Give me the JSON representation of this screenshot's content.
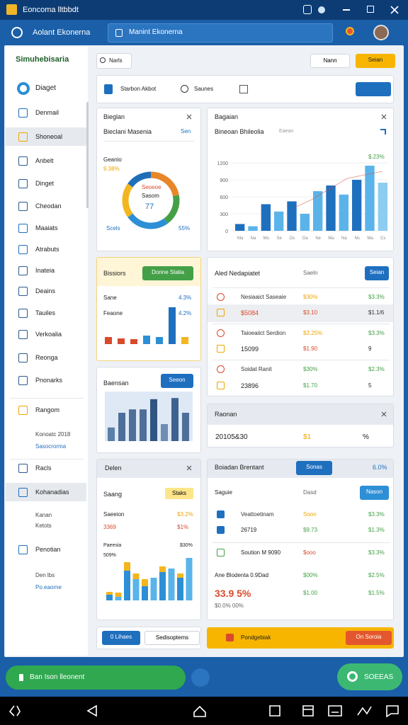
{
  "window": {
    "title": "Eoncoma lltbbdt"
  },
  "header": {
    "title": "Aolant Ekonerna",
    "search": "Manint Ekonerna"
  },
  "sidebar": {
    "title": "Simuhebisaria",
    "items": [
      "Diaget",
      "Denmail",
      "Shoneoal",
      "Anbelt",
      "Dinget",
      "Cheodan",
      "Maaiats",
      "Atrabuts",
      "Inateia",
      "Deains",
      "Tauiles",
      "Verkoalia",
      "Reonga",
      "Pnonarks",
      "Rangom"
    ],
    "group_1": [
      "Konoatc 2018",
      "Sasocrorma"
    ],
    "items_2": [
      "Racls",
      "Kohanadias"
    ],
    "group_2": [
      "Kanan",
      "Ketots"
    ],
    "items_3": [
      "Penotian"
    ],
    "group_3": [
      "Den lbs",
      "Po.eaorne"
    ]
  },
  "toolbar": {
    "search": "Narls",
    "button_1": "Nann",
    "button_2": "Seian",
    "filter_1": "Starbon Akbot",
    "filter_2": "Saunes"
  },
  "donut_card": {
    "title": "Bieglan",
    "subtitle": "Bieclani Masenia",
    "tag": "Sen",
    "label": "Geanio",
    "percent": "9.38%",
    "center": [
      "Seoeoe",
      "Sasom",
      "77"
    ],
    "footer_left": "Scels",
    "footer_right": "55%",
    "values": [
      22,
      18,
      25,
      20,
      15
    ],
    "colors": [
      "#e8862a",
      "#43a047",
      "#2d8fd5",
      "#f3b61f",
      "#1e6fb8"
    ]
  },
  "bar_card": {
    "title": "Bagaian",
    "subtitle": "Bineoan Bhileolia",
    "tag": "Eaean",
    "value": "$.23%",
    "ylim": [
      0,
      1300
    ],
    "yticks": [
      0,
      300,
      600,
      900,
      1200
    ],
    "categories": [
      "Ma",
      "Na",
      "Mo",
      "Se",
      "Os",
      "Da",
      "Ne",
      "Ma",
      "Na",
      "Ns",
      "Ma",
      "Cs"
    ],
    "values": [
      120,
      80,
      470,
      340,
      520,
      300,
      700,
      800,
      640,
      900,
      1150,
      850
    ],
    "colors": [
      "#1f6fbf",
      "#5ab4ea",
      "#1f6fbf",
      "#5ab4ea",
      "#1f6fbf",
      "#5ab4ea",
      "#5ab4ea",
      "#1f6fbf",
      "#5ab4ea",
      "#1f6fbf",
      "#5ab4ea",
      "#8ccdf2"
    ]
  },
  "status_card": {
    "title": "Bissiors",
    "button": "Donne Stalia",
    "rows": [
      [
        "Sane",
        "4.3%"
      ],
      [
        "Feaone",
        "4.2%"
      ]
    ],
    "values": [
      10,
      8,
      7,
      12,
      10,
      52,
      10
    ],
    "colors": [
      "#d84a2b",
      "#d84a2b",
      "#d84a2b",
      "#2d8fd5",
      "#2d8fd5",
      "#1f6fbf",
      "#f3b61f"
    ]
  },
  "balance_card": {
    "title": "Baensan",
    "button": "Seeon",
    "values": [
      12,
      25,
      28,
      28,
      37,
      15,
      38,
      25
    ],
    "colors": [
      "#5a7fa8",
      "#4d6f99",
      "#4d6f99",
      "#4d6f99",
      "#2f5580",
      "#6d8db3",
      "#3d6290",
      "#4d6f99"
    ]
  },
  "detail_card": {
    "title": "Delen",
    "label": "Saang",
    "tag": "Staks",
    "rows": [
      [
        "Saeeion",
        "$3.2%"
      ],
      [
        "3369",
        "$1%"
      ]
    ],
    "chart_title": "Paeesia",
    "chart_labels": [
      "$30%",
      "509%"
    ],
    "values": [
      8,
      5,
      42,
      30,
      20,
      32,
      40,
      45,
      32,
      60
    ],
    "values_2": [
      4,
      6,
      12,
      8,
      10,
      0,
      8,
      0,
      6,
      0
    ]
  },
  "market_card": {
    "title": "Aled Nedapiatet",
    "label": "Saeln",
    "button": "Seian",
    "rows": [
      [
        "Nesiaaict Saseaie",
        "$30%",
        "$3.3%"
      ],
      [
        "$5084",
        "$3.10",
        "$1.1/6"
      ],
      [
        "Taioeaiict Serdion",
        "$3.25%",
        "$3.3%"
      ],
      [
        "15099",
        "$1.90",
        "9"
      ],
      [
        "Soidat Ranit",
        "$30%",
        "$2.3%"
      ],
      [
        "23896",
        "$1.70",
        "5"
      ]
    ]
  },
  "report_card": {
    "title": "Raonan",
    "values": [
      "20105&30",
      "$1",
      "%"
    ]
  },
  "budget_card": {
    "title": "Boiadan Brentant",
    "button": "Sonas",
    "percent": "6.0%",
    "label": "Saguie",
    "label_2": "Dasd",
    "button_2": "Nason",
    "rows": [
      [
        "Veattoetinam",
        "Soon",
        "$3.3%"
      ],
      [
        "26719",
        "$9.73",
        "$1.3%"
      ],
      [
        "Soution M 9090",
        "$ooo",
        "$3.3%"
      ],
      [
        "Ane Blodenta 0.9Dad",
        "$00%",
        "$2.5%"
      ],
      [
        "33.9 5%",
        "$1.00",
        "$1.5%"
      ]
    ],
    "note": "$0.0% 00%"
  },
  "actions": {
    "button_1": "0 Lihaes",
    "button_2": "Sedisoptems",
    "banner": "Pondgebiak",
    "banner_button": "On Soroia"
  },
  "footer": {
    "status": "Ban Ison lleonent",
    "button": "SOEEAS"
  }
}
